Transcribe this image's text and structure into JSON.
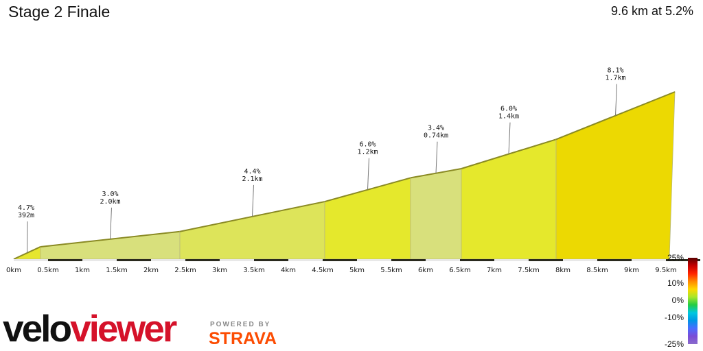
{
  "header": {
    "title": "Stage 2 Finale",
    "summary": "9.6 km at 5.2%"
  },
  "brand": {
    "logo_part1": "velo",
    "logo_part2": "viewer",
    "powered_by": "POWERED BY",
    "partner": "STRAVA"
  },
  "chart_data": {
    "type": "area",
    "title": "Stage 2 Finale",
    "xlabel": "",
    "ylabel": "",
    "xlim": [
      0,
      9.75
    ],
    "x_ticks": [
      "0km",
      "0.5km",
      "1km",
      "1.5km",
      "2km",
      "2.5km",
      "3km",
      "3.5km",
      "4km",
      "4.5km",
      "5km",
      "5.5km",
      "6km",
      "6.5km",
      "7km",
      "7.5km",
      "8km",
      "8.5km",
      "9km",
      "9.5km"
    ],
    "segments": [
      {
        "start_km": 0.0,
        "end_km": 0.39,
        "grade_label": "4.7%",
        "length_label": "392m",
        "color": "#e6e62e"
      },
      {
        "start_km": 0.39,
        "end_km": 2.42,
        "grade_label": "3.0%",
        "length_label": "2.0km",
        "color": "#d8e07c"
      },
      {
        "start_km": 2.42,
        "end_km": 4.53,
        "grade_label": "4.4%",
        "length_label": "2.1km",
        "color": "#dde45a"
      },
      {
        "start_km": 4.53,
        "end_km": 5.78,
        "grade_label": "6.0%",
        "length_label": "1.2km",
        "color": "#e5e82c"
      },
      {
        "start_km": 5.78,
        "end_km": 6.52,
        "grade_label": "3.4%",
        "length_label": "0.74km",
        "color": "#d8e07c"
      },
      {
        "start_km": 6.52,
        "end_km": 7.9,
        "grade_label": "6.0%",
        "length_label": "1.4km",
        "color": "#e5e82c"
      },
      {
        "start_km": 7.9,
        "end_km": 9.63,
        "grade_label": "8.1%",
        "length_label": "1.7km",
        "color": "#ecd902"
      }
    ],
    "elevation_profile_relative": [
      0.0,
      0.074,
      0.165,
      0.344,
      0.486,
      0.541,
      0.716,
      1.0
    ],
    "legend": {
      "type": "gradient-scale",
      "placement": "bottom-right",
      "labels": [
        "25%",
        "10%",
        "0%",
        "-10%",
        "-25%"
      ],
      "values": [
        25,
        10,
        0,
        -10,
        -25
      ],
      "colors": [
        "#5a0000",
        "#c40000",
        "#ff2200",
        "#ff8800",
        "#ffd800",
        "#a8e62a",
        "#22cc44",
        "#00c8e0",
        "#0096e6",
        "#4b6cff",
        "#7a4bd6",
        "#8a6ccc"
      ]
    },
    "grid": false
  }
}
